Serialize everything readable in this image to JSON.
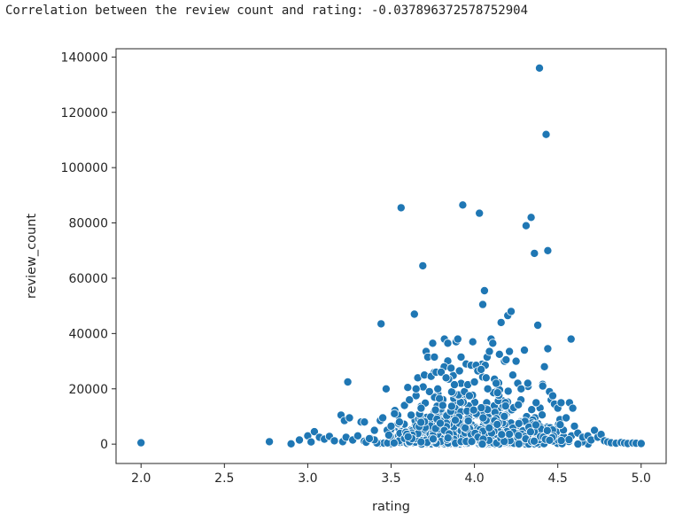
{
  "output": {
    "text": "Correlation between the review count and rating: -0.037896372578752904"
  },
  "colors": {
    "series": "#1f77b4",
    "edge": "#ffffff",
    "axis": "#262626"
  },
  "chart_data": {
    "type": "scatter",
    "xlabel": "rating",
    "ylabel": "review_count",
    "xlim": [
      1.85,
      5.15
    ],
    "ylim": [
      -7000,
      143000
    ],
    "xticks": [
      2.0,
      2.5,
      3.0,
      3.5,
      4.0,
      4.5,
      5.0
    ],
    "xtick_labels": [
      "2.0",
      "2.5",
      "3.0",
      "3.5",
      "4.0",
      "4.5",
      "5.0"
    ],
    "yticks": [
      0,
      20000,
      40000,
      60000,
      80000,
      100000,
      120000,
      140000
    ],
    "ytick_labels": [
      "0",
      "20000",
      "40000",
      "60000",
      "80000",
      "100000",
      "120000",
      "140000"
    ],
    "grid": false,
    "points": [
      [
        2.0,
        500
      ],
      [
        2.77,
        900
      ],
      [
        2.9,
        100
      ],
      [
        2.95,
        1500
      ],
      [
        3.0,
        3000
      ],
      [
        3.02,
        800
      ],
      [
        3.04,
        4500
      ],
      [
        3.07,
        2500
      ],
      [
        3.1,
        1800
      ],
      [
        3.13,
        2800
      ],
      [
        3.16,
        1200
      ],
      [
        3.2,
        10500
      ],
      [
        3.21,
        900
      ],
      [
        3.22,
        8500
      ],
      [
        3.23,
        2500
      ],
      [
        3.24,
        22500
      ],
      [
        3.25,
        9500
      ],
      [
        3.27,
        1500
      ],
      [
        3.3,
        3000
      ],
      [
        3.32,
        8000
      ],
      [
        3.34,
        8000
      ],
      [
        3.35,
        700
      ],
      [
        3.37,
        2000
      ],
      [
        3.4,
        5000
      ],
      [
        3.44,
        43500
      ],
      [
        3.45,
        9500
      ],
      [
        3.47,
        20000
      ],
      [
        3.5,
        6500
      ],
      [
        3.52,
        11000
      ],
      [
        3.55,
        8000
      ],
      [
        3.56,
        85500
      ],
      [
        3.58,
        14000
      ],
      [
        3.6,
        20500
      ],
      [
        3.61,
        16000
      ],
      [
        3.62,
        10500
      ],
      [
        3.64,
        47000
      ],
      [
        3.65,
        20000
      ],
      [
        3.66,
        24000
      ],
      [
        3.68,
        13000
      ],
      [
        3.69,
        64500
      ],
      [
        3.7,
        25000
      ],
      [
        3.71,
        33500
      ],
      [
        3.72,
        31500
      ],
      [
        3.73,
        19000
      ],
      [
        3.74,
        24500
      ],
      [
        3.75,
        36500
      ],
      [
        3.76,
        31500
      ],
      [
        3.77,
        26000
      ],
      [
        3.78,
        20000
      ],
      [
        3.79,
        16500
      ],
      [
        3.8,
        26000
      ],
      [
        3.81,
        14000
      ],
      [
        3.82,
        38000
      ],
      [
        3.83,
        24000
      ],
      [
        3.84,
        36500
      ],
      [
        3.86,
        27500
      ],
      [
        3.88,
        21500
      ],
      [
        3.89,
        37000
      ],
      [
        3.9,
        38000
      ],
      [
        3.91,
        26500
      ],
      [
        3.92,
        31500
      ],
      [
        3.93,
        86500
      ],
      [
        3.94,
        19000
      ],
      [
        3.95,
        29000
      ],
      [
        3.96,
        21500
      ],
      [
        3.97,
        17500
      ],
      [
        3.98,
        28500
      ],
      [
        3.99,
        37000
      ],
      [
        4.0,
        22500
      ],
      [
        4.01,
        28500
      ],
      [
        4.02,
        26500
      ],
      [
        4.03,
        83500
      ],
      [
        4.04,
        27000
      ],
      [
        4.05,
        50500
      ],
      [
        4.06,
        55500
      ],
      [
        4.07,
        24000
      ],
      [
        4.08,
        20000
      ],
      [
        4.09,
        33500
      ],
      [
        4.1,
        38000
      ],
      [
        4.11,
        36500
      ],
      [
        4.12,
        23500
      ],
      [
        4.13,
        22000
      ],
      [
        4.15,
        32500
      ],
      [
        4.16,
        44000
      ],
      [
        4.18,
        30000
      ],
      [
        4.19,
        30500
      ],
      [
        4.2,
        46500
      ],
      [
        4.21,
        33500
      ],
      [
        4.22,
        48000
      ],
      [
        4.23,
        25000
      ],
      [
        4.25,
        30000
      ],
      [
        4.26,
        22000
      ],
      [
        4.28,
        20000
      ],
      [
        4.3,
        34000
      ],
      [
        4.31,
        79000
      ],
      [
        4.32,
        22000
      ],
      [
        4.34,
        82000
      ],
      [
        4.36,
        69000
      ],
      [
        4.37,
        15000
      ],
      [
        4.38,
        43000
      ],
      [
        4.39,
        136000
      ],
      [
        4.41,
        21000
      ],
      [
        4.42,
        28000
      ],
      [
        4.43,
        112000
      ],
      [
        4.44,
        34500
      ],
      [
        4.44,
        70000
      ],
      [
        4.45,
        19000
      ],
      [
        4.46,
        16000
      ],
      [
        4.47,
        17500
      ],
      [
        4.48,
        14500
      ],
      [
        4.5,
        13000
      ],
      [
        4.52,
        15000
      ],
      [
        4.55,
        9500
      ],
      [
        4.57,
        15000
      ],
      [
        4.58,
        38000
      ],
      [
        4.59,
        13000
      ],
      [
        4.6,
        6500
      ],
      [
        4.62,
        4000
      ],
      [
        4.65,
        2500
      ],
      [
        4.68,
        3000
      ],
      [
        4.7,
        1500
      ],
      [
        4.72,
        5000
      ],
      [
        4.74,
        2500
      ],
      [
        4.76,
        3500
      ],
      [
        4.78,
        1200
      ],
      [
        4.8,
        800
      ],
      [
        4.82,
        500
      ],
      [
        4.85,
        300
      ],
      [
        4.88,
        600
      ],
      [
        4.9,
        400
      ],
      [
        4.92,
        200
      ],
      [
        4.95,
        400
      ],
      [
        4.97,
        300
      ],
      [
        5.0,
        200
      ]
    ],
    "cluster": {
      "x_range": [
        3.25,
        4.75
      ],
      "x_center": 4.0,
      "x_spread": 0.38,
      "count": 800,
      "y_scale": 5500
    }
  }
}
